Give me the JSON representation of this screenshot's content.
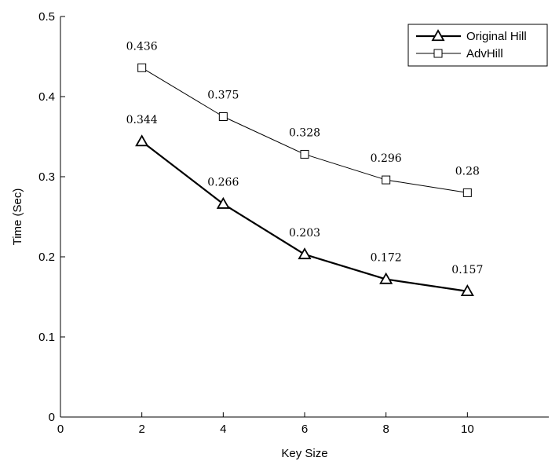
{
  "chart_data": {
    "type": "line",
    "xlabel": "Key Size",
    "ylabel": "Time (Sec)",
    "xlim": [
      0,
      12
    ],
    "ylim": [
      0,
      0.5
    ],
    "x_ticks": [
      0,
      2,
      4,
      6,
      8,
      10
    ],
    "x_tick_labels": [
      "0",
      "2",
      "4",
      "6",
      "8",
      "10"
    ],
    "y_ticks": [
      0,
      0.1,
      0.2,
      0.3,
      0.4,
      0.5
    ],
    "y_tick_labels": [
      "0",
      "0.1",
      "0.2",
      "0.3",
      "0.4",
      "0.5"
    ],
    "grid": false,
    "legend_position": "top-right",
    "x": [
      2,
      4,
      6,
      8,
      10
    ],
    "series": [
      {
        "name": "Original Hill",
        "marker": "triangle",
        "line_style": "thick",
        "color": "#000000",
        "values": [
          0.344,
          0.266,
          0.203,
          0.172,
          0.157
        ],
        "labels": [
          "0.344",
          "0.266",
          "0.203",
          "0.172",
          "0.157"
        ]
      },
      {
        "name": "AdvHill",
        "marker": "square",
        "line_style": "thin",
        "color": "#000000",
        "values": [
          0.436,
          0.375,
          0.328,
          0.296,
          0.28
        ],
        "labels": [
          "0.436",
          "0.375",
          "0.328",
          "0.296",
          "0.28"
        ]
      }
    ]
  }
}
